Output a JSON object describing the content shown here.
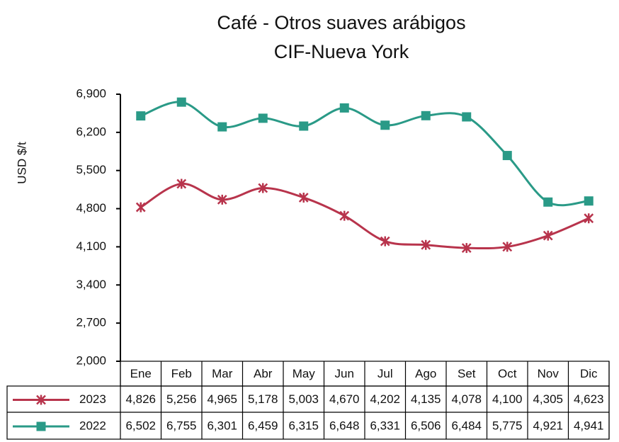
{
  "chart_data": {
    "type": "line",
    "title": [
      "Café - Otros suaves arábigos",
      "CIF-Nueva York"
    ],
    "y_label": "USD $/t",
    "categories": [
      "Ene",
      "Feb",
      "Mar",
      "Abr",
      "May",
      "Jun",
      "Jul",
      "Ago",
      "Set",
      "Oct",
      "Nov",
      "Dic"
    ],
    "series": [
      {
        "name": "2023",
        "color": "#b8344c",
        "marker": "star",
        "values": [
          4826,
          5256,
          4965,
          5178,
          5003,
          4670,
          4202,
          4135,
          4078,
          4100,
          4305,
          4623
        ],
        "value_labels": [
          "4,826",
          "5,256",
          "4,965",
          "5,178",
          "5,003",
          "4,670",
          "4,202",
          "4,135",
          "4,078",
          "4,100",
          "4,305",
          "4,623"
        ]
      },
      {
        "name": "2022",
        "color": "#2a9a87",
        "marker": "square",
        "values": [
          6502,
          6755,
          6301,
          6459,
          6315,
          6648,
          6331,
          6506,
          6484,
          5775,
          4921,
          4941
        ],
        "value_labels": [
          "6,502",
          "6,755",
          "6,301",
          "6,459",
          "6,315",
          "6,648",
          "6,331",
          "6,506",
          "6,484",
          "5,775",
          "4,921",
          "4,941"
        ]
      }
    ],
    "ylim": [
      2000,
      6900
    ],
    "yticks": [
      {
        "value": 2000,
        "label": "2,000"
      },
      {
        "value": 2700,
        "label": "2,700"
      },
      {
        "value": 3400,
        "label": "3,400"
      },
      {
        "value": 4100,
        "label": "4,100"
      },
      {
        "value": 4800,
        "label": "4,800"
      },
      {
        "value": 5500,
        "label": "5,500"
      },
      {
        "value": 6200,
        "label": "6,200"
      },
      {
        "value": 6900,
        "label": "6,900"
      }
    ]
  }
}
